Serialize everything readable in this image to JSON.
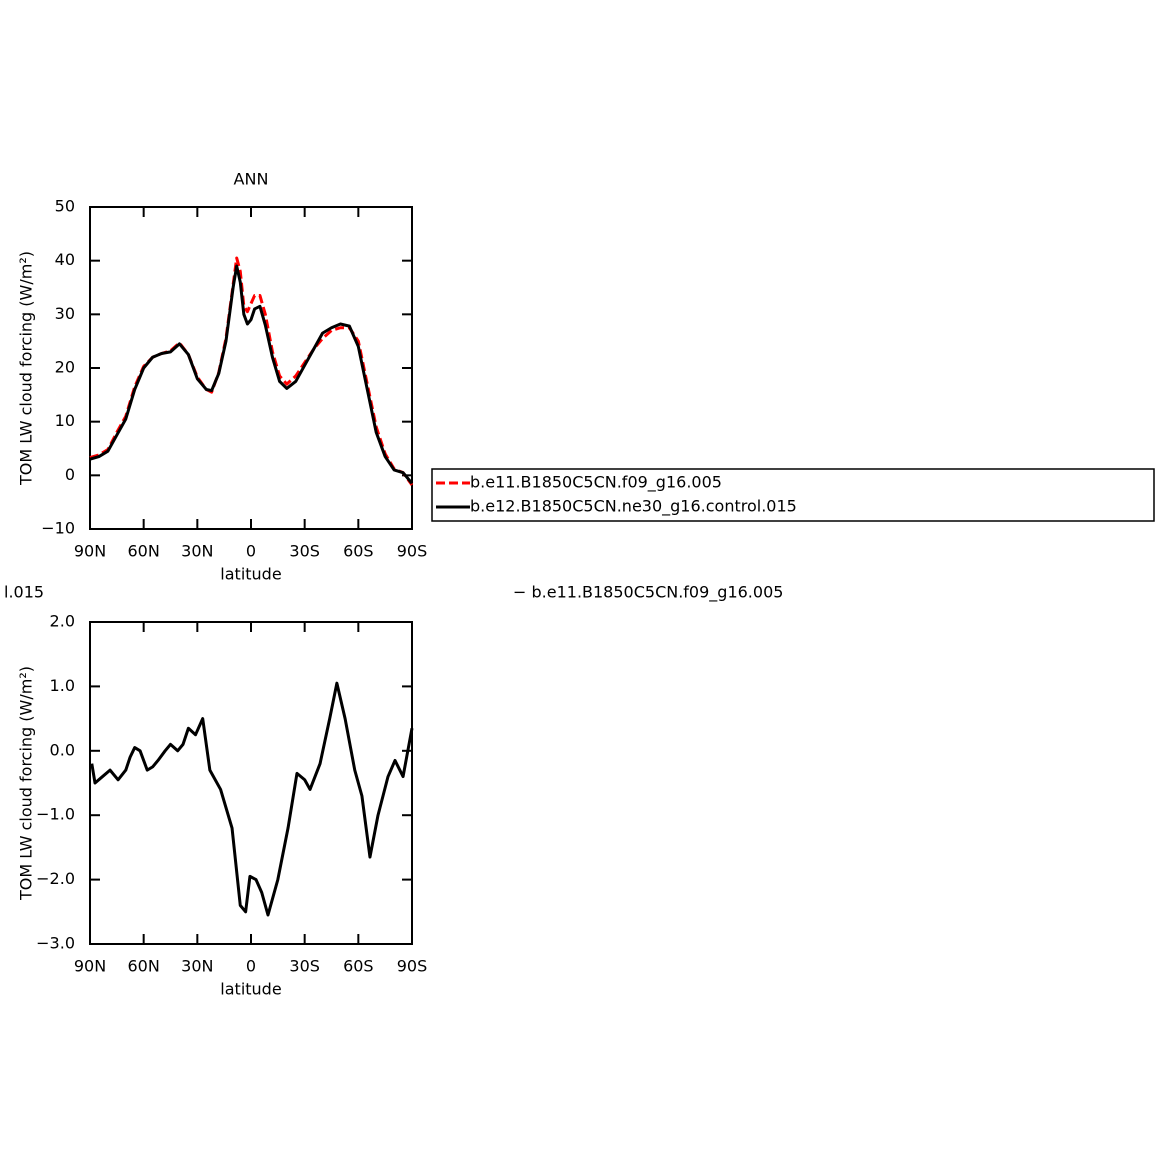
{
  "chart_data": [
    {
      "type": "line",
      "title": "ANN",
      "xlabel": "latitude",
      "ylabel": "TOM LW cloud forcing (W/m²)",
      "xlim": [
        90,
        -90
      ],
      "ylim": [
        -10,
        50
      ],
      "xticks": [
        {
          "value": 90,
          "label": "90N"
        },
        {
          "value": 60,
          "label": "60N"
        },
        {
          "value": 30,
          "label": "30N"
        },
        0,
        {
          "value": -30,
          "label": "30S"
        },
        {
          "value": -60,
          "label": "60S"
        },
        {
          "value": -90,
          "label": "90S"
        }
      ],
      "yticks": [
        {
          "value": -10,
          "label": "−10"
        },
        0,
        10,
        20,
        30,
        40,
        50
      ],
      "x": [
        90,
        85,
        80,
        75,
        70,
        65,
        60,
        55,
        50,
        45,
        40,
        35,
        30,
        25,
        22,
        18,
        14,
        10,
        8,
        6,
        4,
        2,
        0,
        -2,
        -5,
        -8,
        -12,
        -16,
        -20,
        -25,
        -30,
        -35,
        -40,
        -45,
        -50,
        -55,
        -60,
        -65,
        -70,
        -75,
        -80,
        -85,
        -90
      ],
      "series": [
        {
          "name": "b.e11.B1850C5CN.f09_g16.005",
          "color": "#ff0000",
          "dash": true,
          "values": [
            3.3,
            3.8,
            4.8,
            8,
            11,
            16.5,
            20.3,
            22,
            22.7,
            23.2,
            24.7,
            22.5,
            18.3,
            16,
            15.5,
            19.2,
            25.5,
            35.5,
            40.5,
            38,
            31.5,
            30.5,
            32,
            33.5,
            33.5,
            30,
            23,
            18.5,
            17,
            18.5,
            21,
            23.5,
            25.5,
            27,
            27.5,
            27.5,
            25,
            17,
            9,
            4,
            1.2,
            0.5,
            -1.8
          ]
        },
        {
          "name": "b.e12.B1850C5CN.ne30_g16.control.015",
          "color": "#000000",
          "dash": false,
          "values": [
            3,
            3.5,
            4.5,
            7.5,
            10.5,
            16,
            20,
            22,
            22.7,
            23,
            24.5,
            22.5,
            18,
            16,
            15.8,
            19,
            25,
            35,
            39,
            36,
            30,
            28.2,
            29,
            31,
            31.5,
            28,
            22,
            17.5,
            16.2,
            17.5,
            20.5,
            23.5,
            26.5,
            27.5,
            28.2,
            27.8,
            24,
            16,
            8,
            3.5,
            1,
            0.5,
            -1.5
          ]
        }
      ]
    },
    {
      "type": "line",
      "title_parts": [
        "l.015",
        "− b.e11.B1850C5CN.f09_g16.005"
      ],
      "xlabel": "latitude",
      "ylabel": "TOM LW cloud forcing (W/m²)",
      "xlim": [
        90,
        -90
      ],
      "ylim": [
        -3,
        2
      ],
      "xticks": [
        {
          "value": 90,
          "label": "90N"
        },
        {
          "value": 60,
          "label": "60N"
        },
        {
          "value": 30,
          "label": "30N"
        },
        0,
        {
          "value": -30,
          "label": "30S"
        },
        {
          "value": -60,
          "label": "60S"
        },
        {
          "value": -90,
          "label": "90S"
        }
      ],
      "yticks": [
        {
          "value": -3,
          "label": "−3.0"
        },
        {
          "value": -2,
          "label": "−2.0"
        },
        {
          "value": -1,
          "label": "−1.0"
        },
        {
          "value": 0,
          "label": "0.0"
        },
        {
          "value": 1,
          "label": "1.0"
        },
        {
          "value": 2,
          "label": "2.0"
        }
      ],
      "x": [
        89,
        87.2,
        83,
        78.8,
        74.3,
        70,
        67.6,
        65,
        62,
        58,
        55,
        52,
        48,
        45,
        41,
        38,
        35,
        31,
        27,
        24,
        23,
        17,
        10.6,
        6,
        3,
        0.6,
        -2.8,
        -6,
        -9.5,
        -15,
        -20.7,
        -25.7,
        -30,
        -33,
        -38.6,
        -44,
        -48,
        -52.6,
        -58,
        -62,
        -66.5,
        -71,
        -76.6,
        -80.5,
        -85,
        -90
      ],
      "series": [
        {
          "color": "#000000",
          "dash": false,
          "values": [
            -0.2,
            -0.5,
            -0.4,
            -0.3,
            -0.45,
            -0.3,
            -0.1,
            0.05,
            0.0,
            -0.3,
            -0.25,
            -0.15,
            0.0,
            0.1,
            0.0,
            0.1,
            0.35,
            0.25,
            0.5,
            -0.1,
            -0.3,
            -0.6,
            -1.2,
            -2.4,
            -2.5,
            -1.95,
            -2.0,
            -2.2,
            -2.55,
            -2.0,
            -1.2,
            -0.35,
            -0.45,
            -0.6,
            -0.2,
            0.5,
            1.05,
            0.5,
            -0.3,
            -0.7,
            -1.65,
            -1.0,
            -0.4,
            -0.15,
            -0.4,
            0.35
          ]
        }
      ]
    }
  ]
}
